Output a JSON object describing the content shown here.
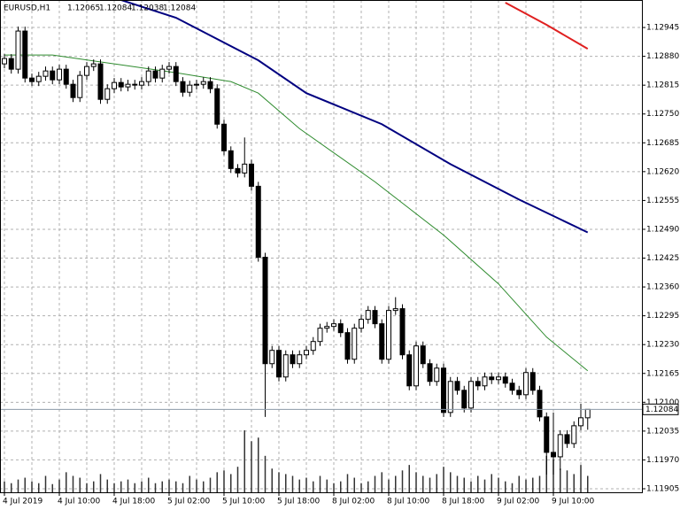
{
  "chart_data": {
    "type": "candlestick",
    "title": "EURUSD,H1",
    "categories": [
      "4 Jul 2019",
      null,
      null,
      null,
      null,
      null,
      null,
      null,
      "4 Jul 10:00",
      null,
      null,
      null,
      null,
      null,
      null,
      null,
      "4 Jul 18:00",
      null,
      null,
      null,
      null,
      null,
      null,
      null,
      "5 Jul 02:00",
      null,
      null,
      null,
      null,
      null,
      null,
      null,
      "5 Jul 10:00",
      null,
      null,
      null,
      null,
      null,
      null,
      null,
      "5 Jul 18:00",
      null,
      null,
      null,
      null,
      null,
      null,
      null,
      "8 Jul 02:00",
      null,
      null,
      null,
      null,
      null,
      null,
      null,
      "8 Jul 10:00",
      null,
      null,
      null,
      null,
      null,
      null,
      null,
      "8 Jul 18:00",
      null,
      null,
      null,
      null,
      null,
      null,
      null,
      "9 Jul 02:00",
      null,
      null,
      null,
      null,
      null,
      null,
      null,
      "9 Jul 10:00",
      null,
      null,
      null,
      null,
      null
    ],
    "open": [
      1.12863,
      1.12875,
      1.12851,
      1.12937,
      1.12831,
      1.12823,
      1.12835,
      1.12847,
      1.12827,
      1.12851,
      1.12817,
      1.12787,
      1.12837,
      1.12857,
      1.12863,
      1.12783,
      1.12807,
      1.12821,
      1.12811,
      1.12817,
      1.12815,
      1.12823,
      1.12847,
      1.12831,
      1.12851,
      1.12857,
      1.12823,
      1.12799,
      1.12815,
      1.12817,
      1.12823,
      1.12807,
      1.12727,
      1.12667,
      1.12627,
      1.12617,
      1.12637,
      1.12587,
      1.12427,
      1.12187,
      1.12217,
      1.12157,
      1.12207,
      1.12187,
      1.12207,
      1.12217,
      1.12237,
      1.12267,
      1.12271,
      1.12277,
      1.12257,
      1.12197,
      1.12267,
      1.12287,
      1.12307,
      1.12277,
      1.12197,
      1.12307,
      1.12311,
      1.12207,
      1.12137,
      1.12227,
      1.12187,
      1.12147,
      1.12177,
      1.12077,
      1.12147,
      1.12127,
      1.12087,
      1.12147,
      1.12137,
      1.12157,
      1.12151,
      1.12157,
      1.12143,
      1.12127,
      1.12117,
      1.12167,
      1.12127,
      1.12067,
      1.11987,
      1.11977,
      1.12027,
      1.12007,
      1.12047,
      1.12065
    ],
    "high": [
      1.12885,
      1.12885,
      1.12947,
      1.12947,
      1.12841,
      1.12845,
      1.12857,
      1.12857,
      1.12861,
      1.12861,
      1.12827,
      1.12847,
      1.12867,
      1.12873,
      1.12873,
      1.12817,
      1.12831,
      1.12831,
      1.12827,
      1.12827,
      1.12833,
      1.12857,
      1.12857,
      1.12861,
      1.12867,
      1.12867,
      1.12833,
      1.12825,
      1.12827,
      1.12833,
      1.12833,
      1.12817,
      1.12737,
      1.12677,
      1.12637,
      1.12697,
      1.12647,
      1.12597,
      1.12437,
      1.12227,
      1.12227,
      1.12217,
      1.12217,
      1.12217,
      1.12227,
      1.12247,
      1.12277,
      1.12281,
      1.12287,
      1.12287,
      1.12267,
      1.12277,
      1.12297,
      1.12317,
      1.12317,
      1.12287,
      1.12317,
      1.12337,
      1.12321,
      1.12217,
      1.12237,
      1.12237,
      1.12197,
      1.12187,
      1.12187,
      1.12157,
      1.12157,
      1.12137,
      1.12157,
      1.12157,
      1.12167,
      1.12167,
      1.12167,
      1.12167,
      1.12153,
      1.12137,
      1.12177,
      1.12177,
      1.12137,
      1.12077,
      1.12077,
      1.12037,
      1.12037,
      1.12057,
      1.12097,
      1.12084
    ],
    "low": [
      1.12853,
      1.12841,
      1.12841,
      1.12821,
      1.12813,
      1.12813,
      1.12825,
      1.12817,
      1.12817,
      1.12807,
      1.12777,
      1.12777,
      1.12827,
      1.12847,
      1.12773,
      1.12773,
      1.12797,
      1.12801,
      1.12801,
      1.12805,
      1.12805,
      1.12813,
      1.12821,
      1.12821,
      1.12841,
      1.12813,
      1.12789,
      1.12789,
      1.12805,
      1.12807,
      1.12797,
      1.12717,
      1.12657,
      1.12617,
      1.12607,
      1.12607,
      1.12577,
      1.12417,
      1.12067,
      1.12177,
      1.12147,
      1.12147,
      1.12177,
      1.12177,
      1.12197,
      1.12207,
      1.12227,
      1.12257,
      1.12261,
      1.12247,
      1.12187,
      1.12187,
      1.12257,
      1.12277,
      1.12267,
      1.12187,
      1.12187,
      1.12297,
      1.12197,
      1.12127,
      1.12127,
      1.12177,
      1.12137,
      1.12137,
      1.12067,
      1.12067,
      1.12117,
      1.12077,
      1.12077,
      1.12127,
      1.12127,
      1.12141,
      1.12141,
      1.12133,
      1.12117,
      1.12107,
      1.12107,
      1.12117,
      1.12057,
      1.11937,
      1.11937,
      1.11947,
      1.11997,
      1.11997,
      1.12037,
      1.12038
    ],
    "close": [
      1.12875,
      1.12851,
      1.12937,
      1.12831,
      1.12823,
      1.12835,
      1.12847,
      1.12827,
      1.12851,
      1.12817,
      1.12787,
      1.12837,
      1.12857,
      1.12863,
      1.12783,
      1.12807,
      1.12821,
      1.12811,
      1.12817,
      1.12815,
      1.12823,
      1.12847,
      1.12831,
      1.12851,
      1.12857,
      1.12823,
      1.12799,
      1.12815,
      1.12817,
      1.12823,
      1.12807,
      1.12727,
      1.12667,
      1.12627,
      1.12617,
      1.12637,
      1.12587,
      1.12427,
      1.12187,
      1.12217,
      1.12157,
      1.12207,
      1.12187,
      1.12207,
      1.12217,
      1.12237,
      1.12267,
      1.12271,
      1.12277,
      1.12257,
      1.12197,
      1.12267,
      1.12287,
      1.12307,
      1.12277,
      1.12197,
      1.12307,
      1.12311,
      1.12207,
      1.12137,
      1.12227,
      1.12187,
      1.12147,
      1.12177,
      1.12077,
      1.12147,
      1.12127,
      1.12087,
      1.12147,
      1.12137,
      1.12157,
      1.12151,
      1.12157,
      1.12143,
      1.12127,
      1.12117,
      1.12167,
      1.12127,
      1.12067,
      1.11987,
      1.11977,
      1.12027,
      1.12007,
      1.12047,
      1.12065,
      1.12084
    ],
    "volume": [
      12,
      10,
      14,
      16,
      12,
      10,
      18,
      9,
      14,
      22,
      18,
      16,
      10,
      12,
      20,
      14,
      10,
      12,
      14,
      10,
      12,
      16,
      10,
      12,
      14,
      12,
      10,
      18,
      14,
      12,
      16,
      22,
      24,
      20,
      28,
      68,
      56,
      60,
      40,
      26,
      22,
      20,
      18,
      14,
      16,
      12,
      18,
      14,
      10,
      12,
      20,
      16,
      10,
      12,
      18,
      22,
      14,
      18,
      24,
      30,
      22,
      18,
      16,
      20,
      28,
      22,
      18,
      16,
      12,
      18,
      14,
      20,
      16,
      12,
      10,
      18,
      14,
      16,
      18,
      40,
      36,
      26,
      24,
      20,
      30,
      18
    ],
    "up_color": "#ffffff",
    "down_color": "#000000",
    "volume_color": "#333333",
    "lines": [
      {
        "color": "#000080",
        "x": [
          15,
          25,
          37,
          44,
          55,
          65,
          75,
          85
        ],
        "values": [
          1.13017,
          1.12967,
          1.12871,
          1.12797,
          1.12727,
          1.12637,
          1.12557,
          1.12483
        ]
      },
      {
        "color": "#2e8b2e",
        "x": [
          0,
          7,
          16,
          25,
          33,
          37,
          43,
          54,
          64,
          72,
          79,
          85
        ],
        "values": [
          1.12883,
          1.12883,
          1.12863,
          1.12843,
          1.12823,
          1.12797,
          1.12717,
          1.12597,
          1.12477,
          1.12367,
          1.12247,
          1.12171
        ]
      },
      {
        "color": "#e02020",
        "x": [
          73,
          79,
          85
        ],
        "values": [
          1.13001,
          1.12951,
          1.12897
        ]
      }
    ],
    "ylim": [
      1.11897,
      1.13007
    ],
    "yticks": [
      1.12945,
      {
        "value": 1.1288,
        "label": "1.12880"
      },
      1.12815,
      {
        "value": 1.1275,
        "label": "1.12750"
      },
      1.12685,
      {
        "value": 1.1262,
        "label": "1.12620"
      },
      1.12555,
      {
        "value": 1.1249,
        "label": "1.12490"
      },
      1.12425,
      {
        "value": 1.1236,
        "label": "1.12360"
      },
      1.12295,
      {
        "value": 1.1223,
        "label": "1.12230"
      },
      1.12165,
      {
        "value": 1.121,
        "label": "1.12100"
      },
      1.12035,
      {
        "value": 1.1197,
        "label": "1.11970"
      },
      1.11905
    ],
    "grid": true
  }
}
